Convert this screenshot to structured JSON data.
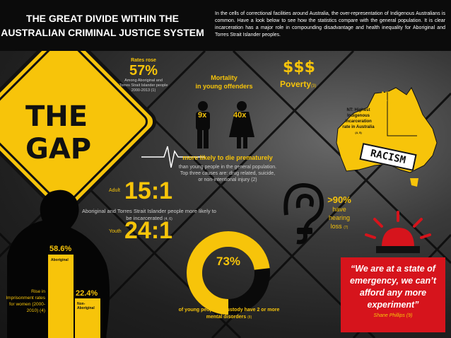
{
  "header": {
    "title_line1": "THE GREAT DIVIDE WITHIN THE",
    "title_line2": "AUSTRALIAN CRIMINAL JUSTICE SYSTEM",
    "intro": "In the cells of correctional facilities around Australia, the over-representation of Indigenous Australians is common. Have a look below to see how the statistics compare with the general population. It is clear incarceration has a major role in compounding disadvantage and health inequality for Aboriginal and Torres Strait Islander peoples."
  },
  "sign": {
    "line1": "THE",
    "line2": "GAP"
  },
  "rates": {
    "label": "Rates rose",
    "value": "57%",
    "note": "Among Aboriginal and Torres Strait Islander people 2000-2013 (1)"
  },
  "mortality": {
    "title_line1": "Mortality",
    "title_line2": "in young offenders",
    "left_figure_label": "9x",
    "right_figure_label": "40x",
    "headline": "more likely to die prematurely",
    "detail": "than young people in the general population. Top three causes are: drug related, suicide, or non-intentional injury (2)"
  },
  "poverty": {
    "symbol": "$$$",
    "label": "Poverty",
    "ref": "(3)"
  },
  "map": {
    "nt_label": "NT",
    "nt_value": "87%",
    "caption": "NT: Highest Indigenous incarceration rate in Australia",
    "caption_ref": "(4, 5)",
    "stamp": "RACISM"
  },
  "ratios": {
    "adult_label": "Adult",
    "adult_value": "15:1",
    "description": "Aboriginal and Torres Strait Islander people more likely to be incarcerated",
    "description_ref": "(4, 6)",
    "youth_label": "Youth",
    "youth_value": "24:1"
  },
  "hearing": {
    "value": ">90%",
    "label_line1": "have",
    "label_line2": "hearing",
    "label_line3": "loss",
    "ref": "(7)"
  },
  "women": {
    "aboriginal_value": "58.6%",
    "aboriginal_label": "Aboriginal",
    "non_aboriginal_value": "22.4%",
    "non_aboriginal_label": "Non-Aboriginal",
    "caption": "Rise in Imprisonment rates for women (2000-2010) (4)"
  },
  "mental": {
    "value": "73%",
    "fraction": 0.73,
    "caption": "of young people in custody have 2 or more mental disorders",
    "ref": "(8)"
  },
  "quote": {
    "text": "“We are at a state of emergency, we can’t afford any more experiment”",
    "author": "Shane Phillips",
    "ref": "(9)"
  },
  "colors": {
    "accent": "#f7c40a",
    "alert": "#d6141c",
    "background": "#1a1a1a"
  }
}
